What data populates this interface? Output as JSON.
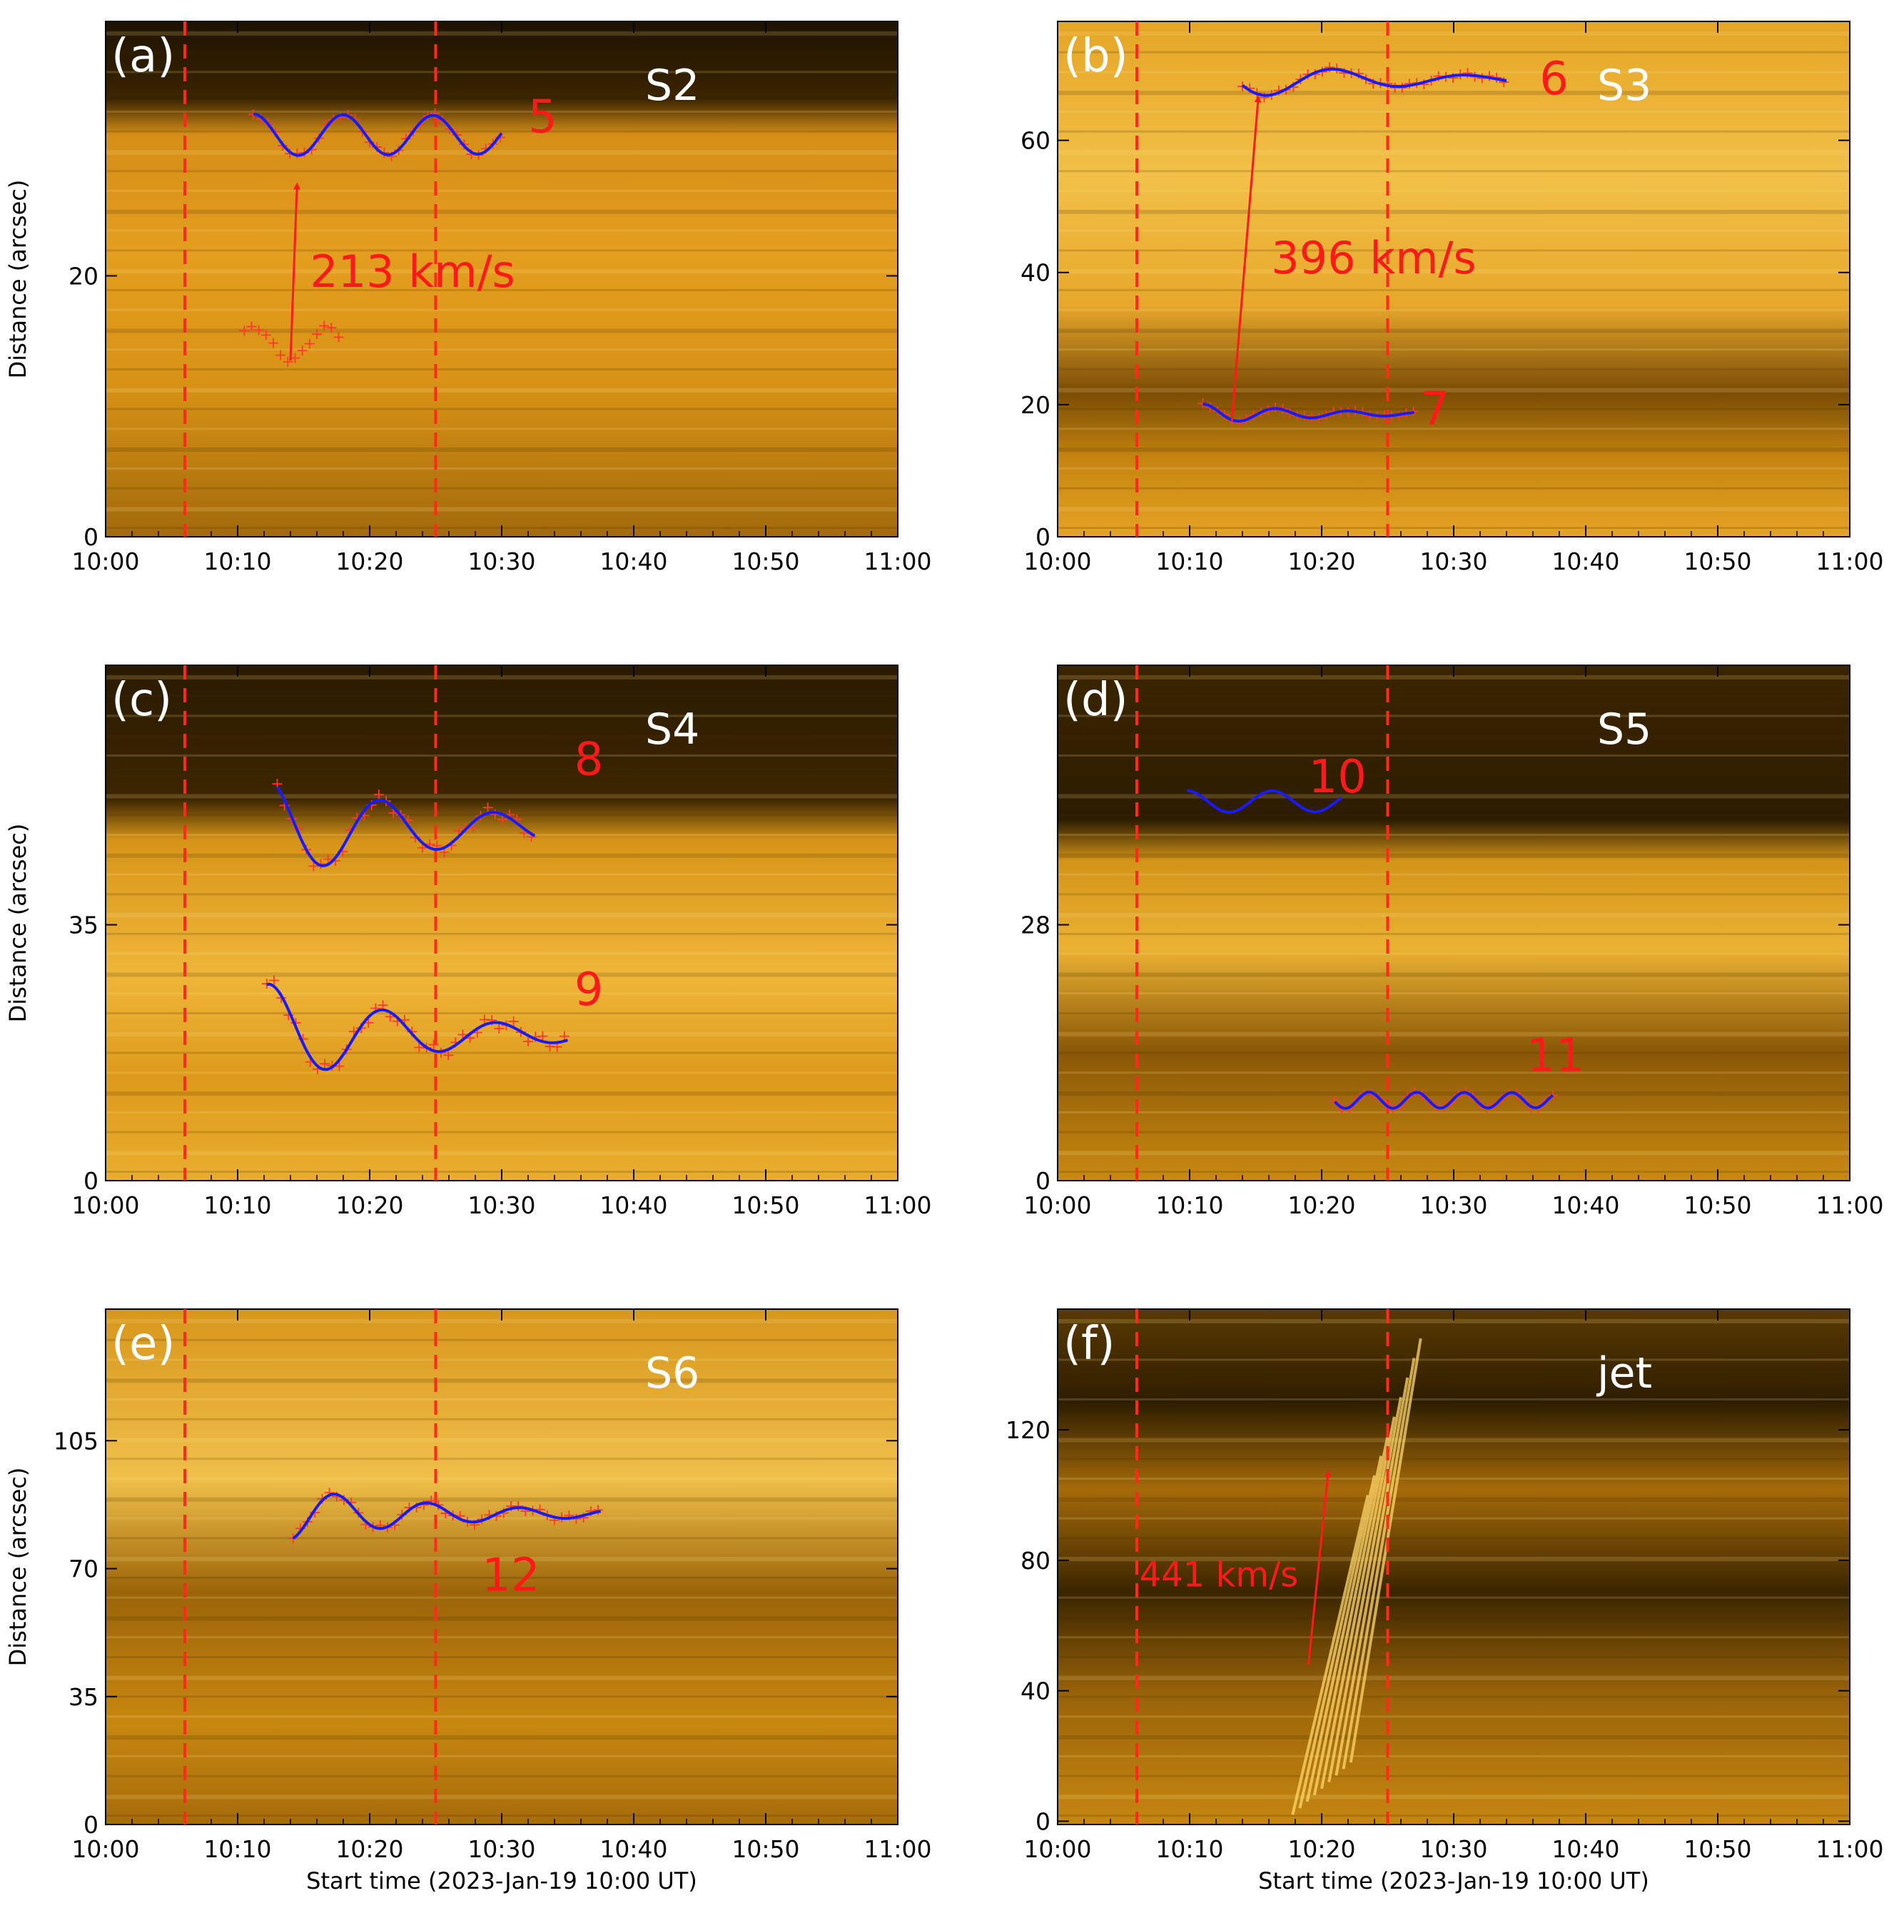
{
  "chart_data": [
    {
      "type": "time-distance",
      "panel_label": "(a)",
      "slice_label": "S2",
      "xlabel": "",
      "ylabel": "Distance (arcsec)",
      "xticks": [
        "10:00",
        "10:10",
        "10:20",
        "10:30",
        "10:40",
        "10:50",
        "11:00"
      ],
      "xlim": [
        0,
        60
      ],
      "ylim": [
        0,
        39.5
      ],
      "yticks": [
        0,
        20
      ],
      "vlines": [
        6,
        25
      ],
      "velocity": {
        "label": "213 km/s",
        "x0": 14.0,
        "y0": 13.5,
        "x1": 14.5,
        "y1": 27.0
      },
      "fits": [
        {
          "label": "5",
          "label_x": 32,
          "label_y": 31,
          "x0": 11.2,
          "x1": 30.0,
          "base": 30.8,
          "amp": 1.6,
          "period": 6.8,
          "phase_x": 14.6,
          "decay": 200,
          "pluses": true
        },
        {
          "label": "",
          "label_x": 0,
          "label_y": 0,
          "x0": 10.5,
          "x1": 18.0,
          "base": 14.8,
          "amp": 1.3,
          "period": 5.5,
          "phase_x": 14.0,
          "decay": 200,
          "pluses": true,
          "no_line": true
        }
      ]
    },
    {
      "type": "time-distance",
      "panel_label": "(b)",
      "slice_label": "S3",
      "xlabel": "",
      "ylabel": "",
      "xticks": [
        "10:00",
        "10:10",
        "10:20",
        "10:30",
        "10:40",
        "10:50",
        "11:00"
      ],
      "xlim": [
        0,
        60
      ],
      "ylim": [
        0,
        78
      ],
      "yticks": [
        0,
        20,
        40,
        60
      ],
      "vlines": [
        6,
        25
      ],
      "velocity": {
        "label": "396 km/s",
        "x0": 13.2,
        "y0": 17.5,
        "x1": 15.2,
        "y1": 66.5
      },
      "fits": [
        {
          "label": "6",
          "label_x": 36.5,
          "label_y": 67,
          "x0": 14.0,
          "x1": 34.0,
          "base": 69.2,
          "amp": 2.8,
          "period": 10.0,
          "phase_x": 16.0,
          "decay": 12,
          "pluses": true
        },
        {
          "label": "7",
          "label_x": 27.5,
          "label_y": 17,
          "x0": 11.0,
          "x1": 27.0,
          "base": 18.6,
          "amp": 1.5,
          "period": 5.5,
          "phase_x": 13.8,
          "decay": 9,
          "pluses": true
        }
      ]
    },
    {
      "type": "time-distance",
      "panel_label": "(c)",
      "slice_label": "S4",
      "xlabel": "",
      "ylabel": "Distance (arcsec)",
      "xticks": [
        "10:00",
        "10:10",
        "10:20",
        "10:30",
        "10:40",
        "10:50",
        "11:00"
      ],
      "xlim": [
        0,
        60
      ],
      "ylim": [
        0,
        70.5
      ],
      "yticks": [
        0,
        35
      ],
      "vlines": [
        6,
        25
      ],
      "velocity": null,
      "fits": [
        {
          "label": "8",
          "label_x": 35.5,
          "label_y": 55.5,
          "x0": 13.0,
          "x1": 32.5,
          "base": 48.2,
          "amp": 6.5,
          "period": 8.6,
          "phase_x": 16.6,
          "decay": 15,
          "pluses": true
        },
        {
          "label": "9",
          "label_x": 35.5,
          "label_y": 24,
          "x0": 12.2,
          "x1": 35.0,
          "base": 20.0,
          "amp": 7.0,
          "period": 8.6,
          "phase_x": 16.8,
          "decay": 12,
          "pluses": true
        }
      ]
    },
    {
      "type": "time-distance",
      "panel_label": "(d)",
      "slice_label": "S5",
      "xlabel": "",
      "ylabel": "",
      "xticks": [
        "10:00",
        "10:10",
        "10:20",
        "10:30",
        "10:40",
        "10:50",
        "11:00"
      ],
      "xlim": [
        0,
        60
      ],
      "ylim": [
        0,
        56.4
      ],
      "yticks": [
        0,
        28
      ],
      "vlines": [
        6,
        25
      ],
      "velocity": null,
      "fits": [
        {
          "label": "10",
          "label_x": 19.0,
          "label_y": 42.5,
          "x0": 9.8,
          "x1": 21.5,
          "base": 41.5,
          "amp": 1.2,
          "period": 6.5,
          "phase_x": 13.0,
          "decay": 200,
          "pluses": false
        },
        {
          "label": "11",
          "label_x": 35.5,
          "label_y": 12,
          "x0": 21.0,
          "x1": 37.5,
          "base": 8.8,
          "amp": 0.9,
          "period": 3.6,
          "phase_x": 21.8,
          "decay": 200,
          "pluses": true
        }
      ]
    },
    {
      "type": "time-distance",
      "panel_label": "(e)",
      "slice_label": "S6",
      "xlabel": "Start time (2023-Jan-19 10:00 UT)",
      "ylabel": "Distance (arcsec)",
      "xticks": [
        "10:00",
        "10:10",
        "10:20",
        "10:30",
        "10:40",
        "10:50",
        "11:00"
      ],
      "xlim": [
        0,
        60
      ],
      "ylim": [
        0,
        141
      ],
      "yticks": [
        0,
        35,
        70,
        105
      ],
      "vlines": [
        6,
        25
      ],
      "velocity": null,
      "fits": [
        {
          "label": "12",
          "label_x": 28.5,
          "label_y": 64,
          "x0": 14.2,
          "x1": 37.5,
          "base": 85.0,
          "amp": 7.0,
          "period": 7.0,
          "phase_x": 20.9,
          "decay": 12,
          "pluses": true
        }
      ]
    },
    {
      "type": "time-distance",
      "panel_label": "(f)",
      "slice_label": "jet",
      "xlabel": "Start time (2023-Jan-19 10:00 UT)",
      "ylabel": "",
      "xticks": [
        "10:00",
        "10:10",
        "10:20",
        "10:30",
        "10:40",
        "10:50",
        "11:00"
      ],
      "xlim": [
        0,
        60
      ],
      "ylim": [
        -1,
        157
      ],
      "yticks": [
        0,
        40,
        80,
        120
      ],
      "vlines": [
        6,
        25
      ],
      "velocity": {
        "label": "441 km/s",
        "x0": 19.0,
        "y0": 48.0,
        "x1": 20.5,
        "y1": 107.0
      },
      "fits": []
    }
  ]
}
